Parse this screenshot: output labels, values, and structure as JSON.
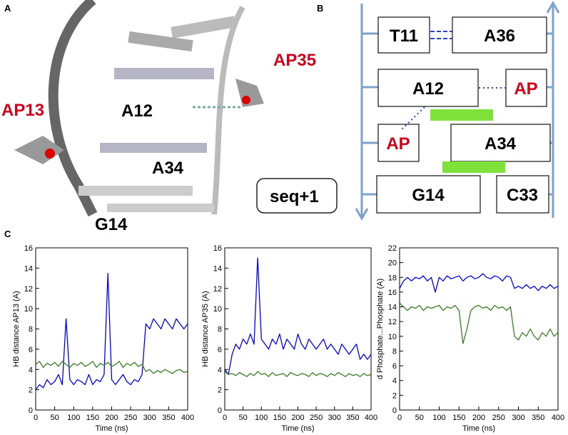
{
  "panel_a": {
    "label": "A",
    "labels": [
      "AP13",
      "AP35",
      "A12",
      "A34",
      "G14"
    ],
    "note": "seq+1"
  },
  "panel_b": {
    "label": "B",
    "boxes": [
      "T11",
      "A36",
      "A12",
      "AP",
      "AP",
      "A34",
      "G14",
      "C33"
    ]
  },
  "panel_c_label": "C",
  "chart_data": [
    {
      "type": "line",
      "xlabel": "Time (ns)",
      "ylabel": "HB distance AP13 (A)",
      "x": [
        0,
        10,
        20,
        30,
        40,
        50,
        60,
        70,
        80,
        90,
        100,
        110,
        120,
        130,
        140,
        150,
        160,
        170,
        180,
        190,
        200,
        210,
        220,
        230,
        240,
        250,
        260,
        270,
        280,
        290,
        300,
        310,
        320,
        330,
        340,
        350,
        360,
        370,
        380,
        390,
        400
      ],
      "xlim": [
        0,
        400
      ],
      "xticks": [
        0,
        50,
        100,
        150,
        200,
        250,
        300,
        350,
        400
      ],
      "ylim": [
        0,
        16
      ],
      "yticks": [
        0,
        2,
        4,
        6,
        8,
        10,
        12,
        14,
        16
      ],
      "series": [
        {
          "color": "#0000ff",
          "values": [
            2,
            2.5,
            2.2,
            3,
            2.5,
            2.8,
            3.5,
            2.5,
            9,
            3,
            2.5,
            3,
            2.8,
            2.5,
            3.5,
            2.5,
            3,
            2.8,
            3.5,
            13.5,
            3,
            2.5,
            3,
            3.5,
            2.8,
            2.5,
            3,
            2.8,
            3.5,
            8.5,
            8,
            9,
            8.5,
            8,
            9,
            8.5,
            8,
            9,
            8.5,
            8,
            8.5
          ]
        },
        {
          "color": "#3a7d22",
          "values": [
            4.5,
            4.8,
            4.2,
            4.6,
            4.4,
            4.7,
            4.3,
            4.8,
            4.5,
            4.2,
            4.6,
            4.4,
            4.7,
            4.3,
            4.5,
            4.8,
            4.2,
            4.6,
            4.4,
            4.7,
            4.3,
            4.5,
            4.8,
            4.2,
            4.6,
            4.4,
            4.7,
            4.3,
            4.5,
            3.8,
            4,
            3.6,
            3.9,
            3.7,
            4,
            3.8,
            3.6,
            3.9,
            4,
            3.7,
            3.8
          ]
        }
      ]
    },
    {
      "type": "line",
      "xlabel": "Time (ns)",
      "ylabel": "HB distance AP35 (A)",
      "x": [
        0,
        10,
        20,
        30,
        40,
        50,
        60,
        70,
        80,
        90,
        100,
        110,
        120,
        130,
        140,
        150,
        160,
        170,
        180,
        190,
        200,
        210,
        220,
        230,
        240,
        250,
        260,
        270,
        280,
        290,
        300,
        310,
        320,
        330,
        340,
        350,
        360,
        370,
        380,
        390,
        400
      ],
      "xlim": [
        0,
        400
      ],
      "xticks": [
        0,
        50,
        100,
        150,
        200,
        250,
        300,
        350,
        400
      ],
      "ylim": [
        0,
        16
      ],
      "yticks": [
        0,
        2,
        4,
        6,
        8,
        10,
        12,
        14,
        16
      ],
      "series": [
        {
          "color": "#0000ff",
          "values": [
            4,
            3.5,
            5.5,
            6.5,
            6,
            7,
            6.5,
            7.5,
            6.5,
            15,
            7,
            6.5,
            6,
            7,
            6.5,
            7.5,
            6,
            7,
            6.5,
            6,
            7.5,
            6.5,
            6,
            7,
            6.5,
            6,
            6.5,
            7,
            6,
            6.5,
            6,
            5.5,
            6.5,
            6,
            5.5,
            6,
            6.5,
            5,
            5.5,
            5,
            5.5
          ]
        },
        {
          "color": "#3a7d22",
          "values": [
            3.8,
            3.5,
            3.6,
            3.4,
            3.7,
            3.5,
            3.3,
            3.6,
            3.4,
            3.8,
            3.5,
            3.6,
            3.3,
            3.7,
            3.4,
            3.5,
            3.6,
            3.3,
            3.7,
            3.5,
            3.4,
            3.6,
            3.5,
            3.3,
            3.7,
            3.4,
            3.6,
            3.5,
            3.3,
            3.6,
            3.4,
            3.7,
            3.5,
            3.3,
            3.6,
            3.4,
            3.5,
            3.3,
            3.6,
            3.4,
            3.5
          ]
        }
      ]
    },
    {
      "type": "line",
      "xlabel": "Time (ns)",
      "ylabel": "d Phosphate...Phosphate (A)",
      "x": [
        0,
        10,
        20,
        30,
        40,
        50,
        60,
        70,
        80,
        90,
        100,
        110,
        120,
        130,
        140,
        150,
        160,
        170,
        180,
        190,
        200,
        210,
        220,
        230,
        240,
        250,
        260,
        270,
        280,
        290,
        300,
        310,
        320,
        330,
        340,
        350,
        360,
        370,
        380,
        390,
        400
      ],
      "xlim": [
        0,
        400
      ],
      "xticks": [
        0,
        50,
        100,
        150,
        200,
        250,
        300,
        350,
        400
      ],
      "ylim": [
        0,
        22
      ],
      "yticks": [
        0,
        2,
        4,
        6,
        8,
        10,
        12,
        14,
        16,
        18,
        20,
        22
      ],
      "series": [
        {
          "color": "#0000ff",
          "values": [
            16.5,
            17.5,
            18,
            17.5,
            18,
            17.8,
            18.2,
            17.5,
            18,
            16,
            18,
            17.5,
            18.2,
            17.8,
            18,
            18.2,
            17.5,
            18,
            18.2,
            17.8,
            18,
            18.5,
            18,
            17.8,
            18.2,
            18,
            17.5,
            18.2,
            18,
            16.5,
            16.8,
            16.5,
            17,
            16.5,
            16.8,
            16.2,
            16.8,
            16.5,
            17,
            16.5,
            16.8
          ]
        },
        {
          "color": "#3a7d22",
          "values": [
            14.5,
            14,
            13.5,
            14,
            13.8,
            14.2,
            13.5,
            14,
            13.8,
            14,
            14.2,
            13.5,
            14,
            13.8,
            14.2,
            13.5,
            9,
            11,
            13.5,
            14,
            14.2,
            13.8,
            14,
            13.5,
            14.2,
            13.8,
            14,
            13.5,
            14,
            10,
            9.5,
            10.5,
            10,
            11,
            10,
            9.5,
            10.5,
            10,
            11,
            10,
            10.5
          ]
        }
      ]
    }
  ]
}
